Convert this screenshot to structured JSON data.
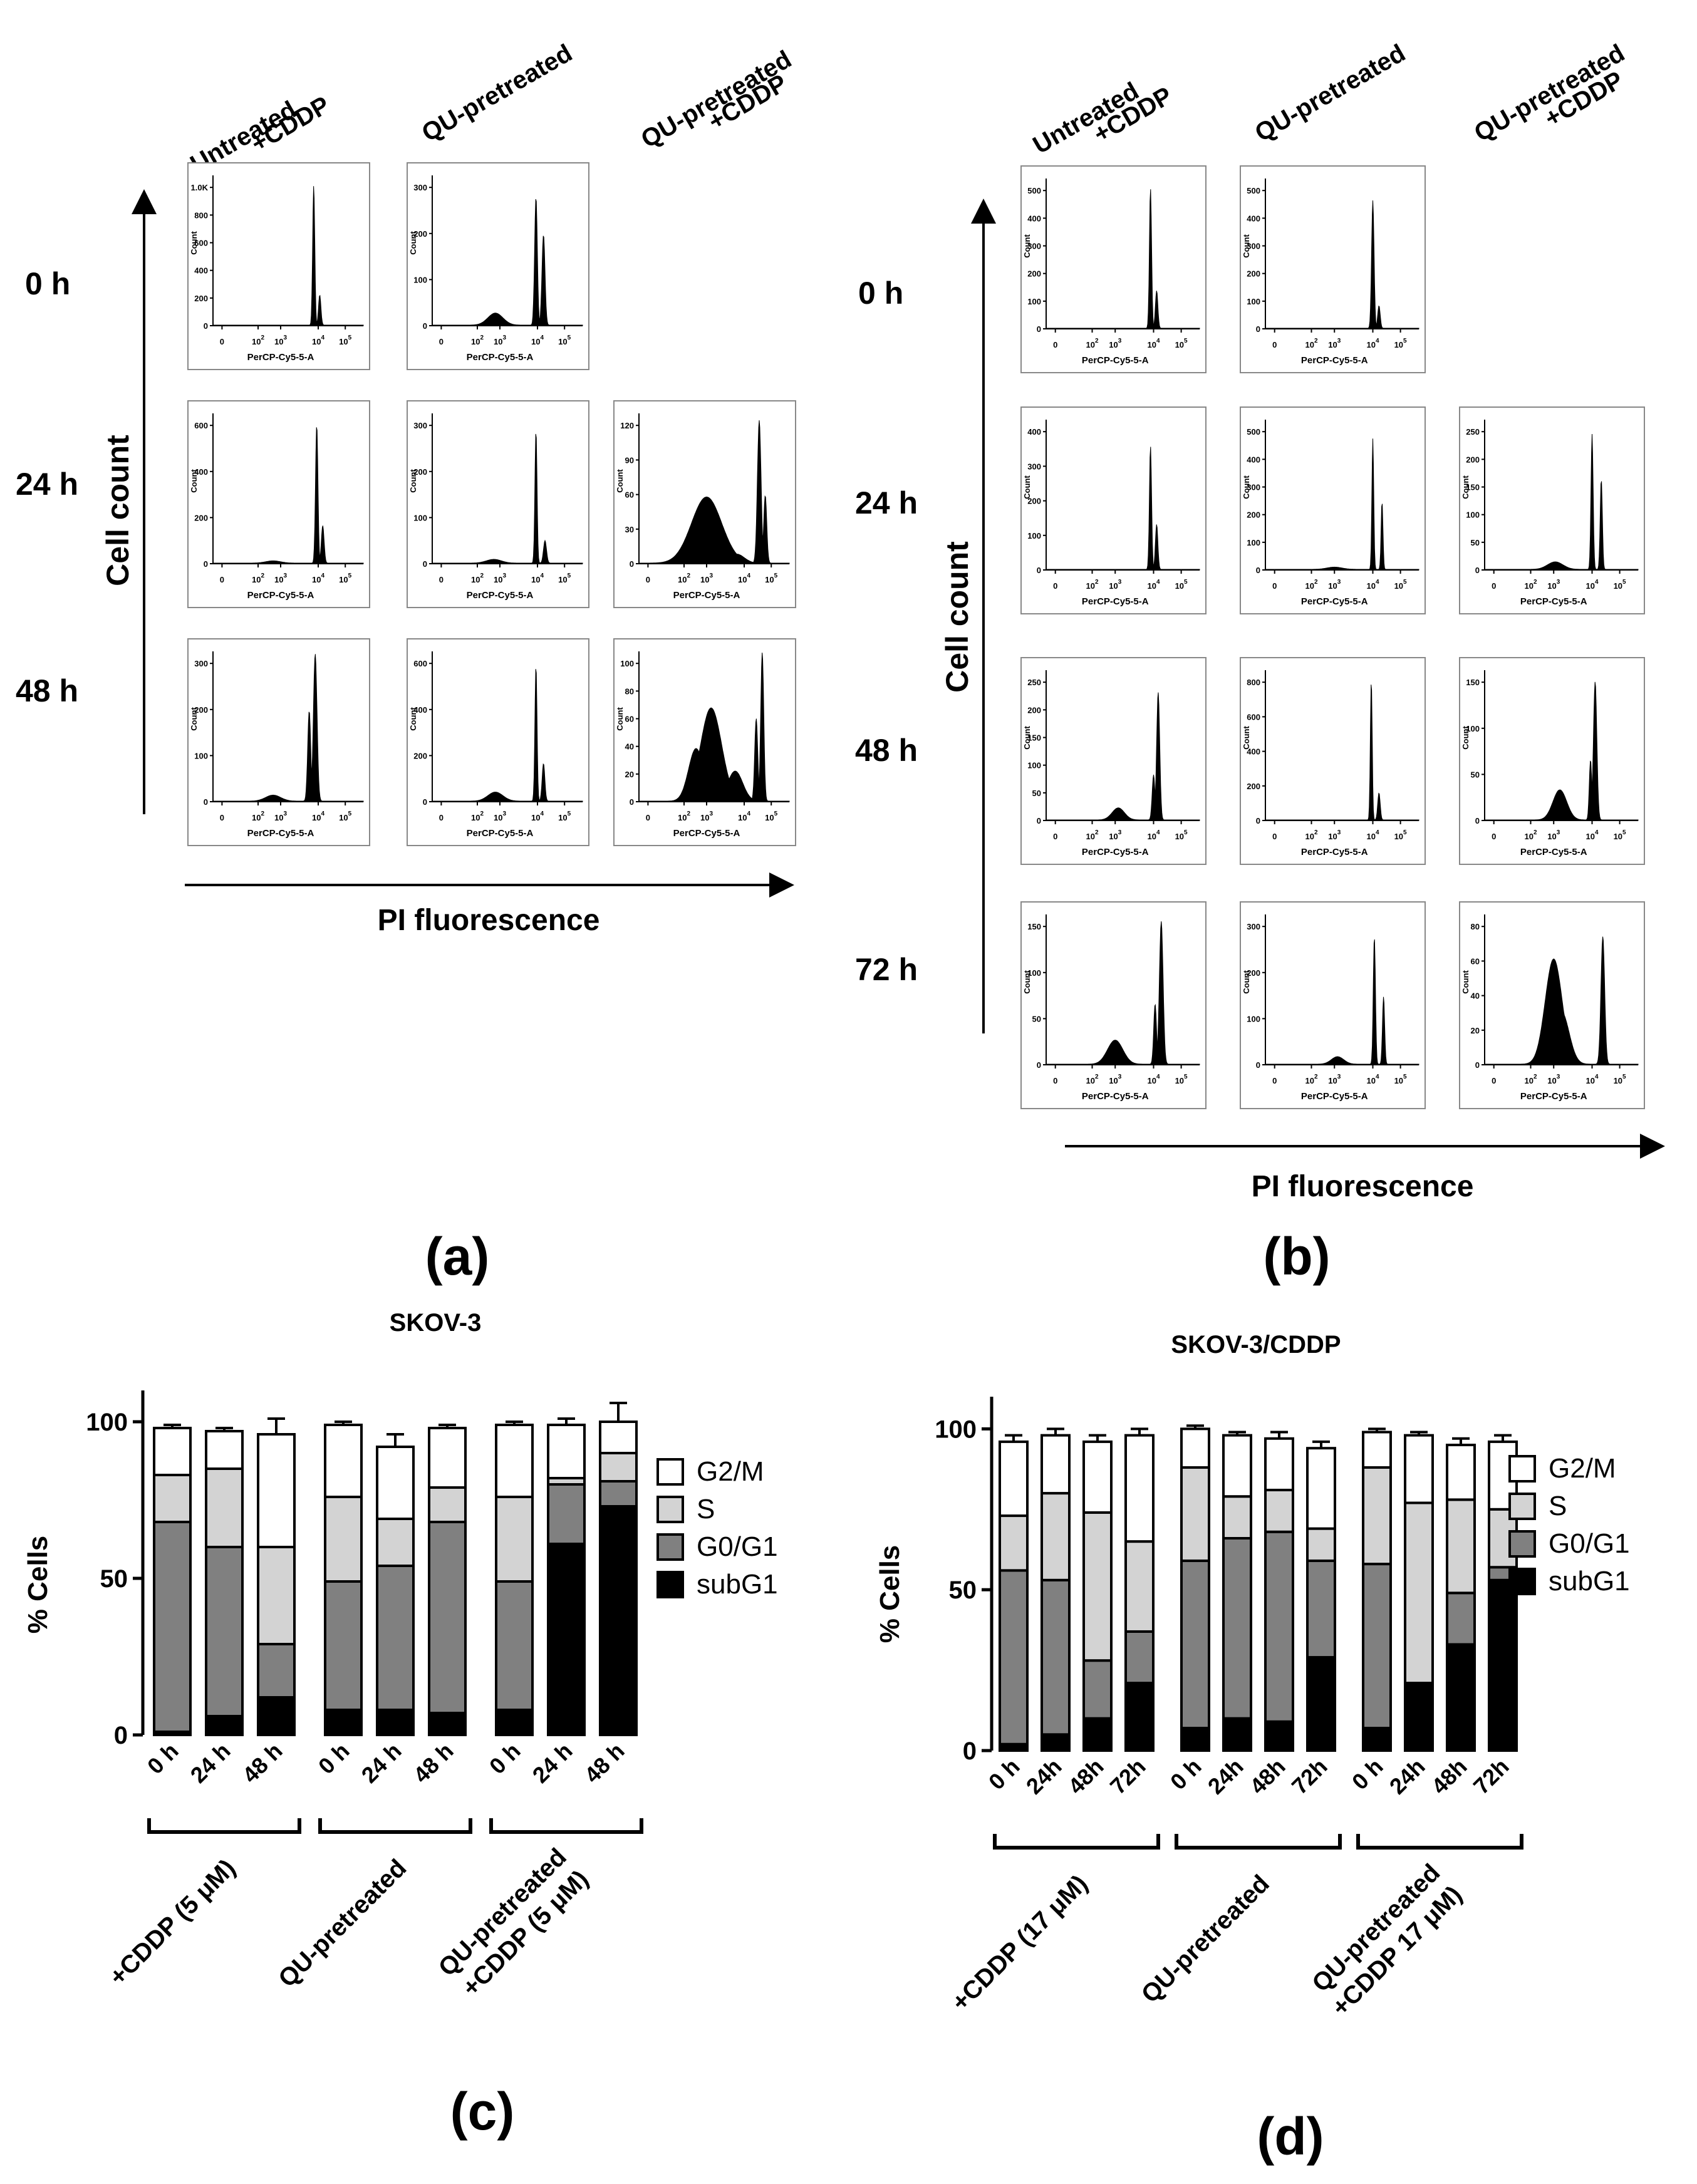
{
  "common": {
    "count_label": "Count",
    "axis_label": "PerCP-Cy5-5-A",
    "x_ticks": [
      "0",
      "10",
      "10",
      "10",
      "10"
    ],
    "x_tick_exponents": [
      "",
      "2",
      "3",
      "4",
      "5"
    ]
  },
  "panel_a": {
    "letter": "(a)",
    "cond_labels": [
      [
        "Untreated",
        "+CDDP"
      ],
      [
        "QU-pretreated"
      ],
      [
        "QU-pretreated",
        "+CDDP"
      ]
    ],
    "time_labels": [
      "0 h",
      "24 h",
      "48 h"
    ],
    "y_axis_label": "Cell count",
    "x_axis_label": "PI fluorescence",
    "histograms": [
      {
        "row": 0,
        "col": 0,
        "yticks": [
          "0",
          "200",
          "400",
          "600",
          "800",
          "1.0K"
        ],
        "peaks": [
          {
            "c": 0.67,
            "h": 0.93,
            "w": 0.007
          },
          {
            "c": 0.71,
            "h": 0.2,
            "w": 0.008
          }
        ],
        "humps": []
      },
      {
        "row": 0,
        "col": 1,
        "yticks": [
          "0",
          "100",
          "200",
          "300"
        ],
        "peaks": [
          {
            "c": 0.69,
            "h": 0.85,
            "w": 0.009
          },
          {
            "c": 0.74,
            "h": 0.6,
            "w": 0.01
          }
        ],
        "humps": [
          {
            "c": 0.42,
            "h": 0.08,
            "w": 0.05
          }
        ]
      },
      {
        "row": 1,
        "col": 0,
        "yticks": [
          "0",
          "200",
          "400",
          "600"
        ],
        "peaks": [
          {
            "c": 0.69,
            "h": 0.92,
            "w": 0.008
          },
          {
            "c": 0.73,
            "h": 0.25,
            "w": 0.009
          }
        ],
        "humps": [
          {
            "c": 0.4,
            "h": 0.015,
            "w": 0.05
          }
        ]
      },
      {
        "row": 1,
        "col": 1,
        "yticks": [
          "0",
          "100",
          "200",
          "300"
        ],
        "peaks": [
          {
            "c": 0.69,
            "h": 0.88,
            "w": 0.007
          },
          {
            "c": 0.75,
            "h": 0.15,
            "w": 0.01
          }
        ],
        "humps": [
          {
            "c": 0.41,
            "h": 0.025,
            "w": 0.05
          }
        ]
      },
      {
        "row": 1,
        "col": 2,
        "yticks": [
          "0",
          "30",
          "60",
          "90",
          "120"
        ],
        "peaks": [
          {
            "c": 0.8,
            "h": 0.95,
            "w": 0.012
          },
          {
            "c": 0.84,
            "h": 0.45,
            "w": 0.01
          }
        ],
        "humps": [
          {
            "c": 0.45,
            "h": 0.44,
            "w": 0.1
          },
          {
            "c": 0.65,
            "h": 0.06,
            "w": 0.05
          }
        ]
      },
      {
        "row": 2,
        "col": 0,
        "yticks": [
          "0",
          "100",
          "200",
          "300"
        ],
        "peaks": [
          {
            "c": 0.68,
            "h": 0.98,
            "w": 0.012
          },
          {
            "c": 0.64,
            "h": 0.6,
            "w": 0.01
          }
        ],
        "humps": [
          {
            "c": 0.4,
            "h": 0.04,
            "w": 0.05
          }
        ]
      },
      {
        "row": 2,
        "col": 1,
        "yticks": [
          "0",
          "200",
          "400",
          "600"
        ],
        "peaks": [
          {
            "c": 0.69,
            "h": 0.9,
            "w": 0.007
          },
          {
            "c": 0.74,
            "h": 0.25,
            "w": 0.009
          }
        ],
        "humps": [
          {
            "c": 0.42,
            "h": 0.06,
            "w": 0.05
          }
        ]
      },
      {
        "row": 2,
        "col": 2,
        "yticks": [
          "0",
          "20",
          "40",
          "60",
          "80",
          "100"
        ],
        "peaks": [
          {
            "c": 0.82,
            "h": 0.99,
            "w": 0.01
          },
          {
            "c": 0.78,
            "h": 0.55,
            "w": 0.01
          }
        ],
        "humps": [
          {
            "c": 0.48,
            "h": 0.62,
            "w": 0.07
          },
          {
            "c": 0.38,
            "h": 0.35,
            "w": 0.05
          },
          {
            "c": 0.64,
            "h": 0.2,
            "w": 0.05
          }
        ]
      }
    ]
  },
  "panel_b": {
    "letter": "(b)",
    "cond_labels": [
      [
        "Untreated",
        "+CDDP"
      ],
      [
        "QU-pretreated"
      ],
      [
        "QU-pretreated",
        "+CDDP"
      ]
    ],
    "time_labels": [
      "0 h",
      "24 h",
      "48 h",
      "72 h"
    ],
    "y_axis_label": "Cell count",
    "x_axis_label": "PI fluorescence",
    "histograms": [
      {
        "row": 0,
        "col": 0,
        "yticks": [
          "0",
          "100",
          "200",
          "300",
          "400",
          "500"
        ],
        "peaks": [
          {
            "c": 0.68,
            "h": 0.93,
            "w": 0.007
          },
          {
            "c": 0.72,
            "h": 0.25,
            "w": 0.008
          }
        ],
        "humps": []
      },
      {
        "row": 0,
        "col": 1,
        "yticks": [
          "0",
          "100",
          "200",
          "300",
          "400",
          "500"
        ],
        "peaks": [
          {
            "c": 0.7,
            "h": 0.85,
            "w": 0.008
          },
          {
            "c": 0.74,
            "h": 0.15,
            "w": 0.008
          }
        ],
        "humps": []
      },
      {
        "row": 1,
        "col": 0,
        "yticks": [
          "0",
          "100",
          "200",
          "300",
          "400"
        ],
        "peaks": [
          {
            "c": 0.68,
            "h": 0.82,
            "w": 0.007
          },
          {
            "c": 0.72,
            "h": 0.3,
            "w": 0.008
          }
        ],
        "humps": []
      },
      {
        "row": 1,
        "col": 1,
        "yticks": [
          "0",
          "100",
          "200",
          "300",
          "400",
          "500"
        ],
        "peaks": [
          {
            "c": 0.7,
            "h": 0.87,
            "w": 0.006
          },
          {
            "c": 0.76,
            "h": 0.45,
            "w": 0.006
          }
        ],
        "humps": [
          {
            "c": 0.45,
            "h": 0.015,
            "w": 0.05
          }
        ]
      },
      {
        "row": 1,
        "col": 2,
        "yticks": [
          "0",
          "50",
          "100",
          "150",
          "200",
          "250"
        ],
        "peaks": [
          {
            "c": 0.7,
            "h": 0.9,
            "w": 0.007
          },
          {
            "c": 0.76,
            "h": 0.6,
            "w": 0.007
          }
        ],
        "humps": [
          {
            "c": 0.46,
            "h": 0.05,
            "w": 0.05
          }
        ]
      },
      {
        "row": 2,
        "col": 0,
        "yticks": [
          "0",
          "50",
          "100",
          "150",
          "200",
          "250"
        ],
        "peaks": [
          {
            "c": 0.73,
            "h": 0.85,
            "w": 0.01
          },
          {
            "c": 0.7,
            "h": 0.3,
            "w": 0.009
          }
        ],
        "humps": [
          {
            "c": 0.47,
            "h": 0.08,
            "w": 0.04
          }
        ]
      },
      {
        "row": 2,
        "col": 1,
        "yticks": [
          "0",
          "200",
          "400",
          "600",
          "800"
        ],
        "peaks": [
          {
            "c": 0.69,
            "h": 0.93,
            "w": 0.006
          },
          {
            "c": 0.74,
            "h": 0.18,
            "w": 0.008
          }
        ],
        "humps": []
      },
      {
        "row": 2,
        "col": 2,
        "yticks": [
          "0",
          "50",
          "100",
          "150"
        ],
        "peaks": [
          {
            "c": 0.72,
            "h": 0.92,
            "w": 0.011
          },
          {
            "c": 0.69,
            "h": 0.4,
            "w": 0.008
          }
        ],
        "humps": [
          {
            "c": 0.49,
            "h": 0.2,
            "w": 0.045
          }
        ]
      },
      {
        "row": 3,
        "col": 0,
        "yticks": [
          "0",
          "50",
          "100",
          "150"
        ],
        "peaks": [
          {
            "c": 0.75,
            "h": 0.95,
            "w": 0.012
          },
          {
            "c": 0.71,
            "h": 0.4,
            "w": 0.009
          }
        ],
        "humps": [
          {
            "c": 0.45,
            "h": 0.16,
            "w": 0.05
          }
        ]
      },
      {
        "row": 3,
        "col": 1,
        "yticks": [
          "0",
          "100",
          "200",
          "300"
        ],
        "peaks": [
          {
            "c": 0.71,
            "h": 0.85,
            "w": 0.007
          },
          {
            "c": 0.77,
            "h": 0.45,
            "w": 0.007
          }
        ],
        "humps": [
          {
            "c": 0.47,
            "h": 0.05,
            "w": 0.04
          }
        ]
      },
      {
        "row": 3,
        "col": 2,
        "yticks": [
          "0",
          "20",
          "40",
          "60",
          "80"
        ],
        "peaks": [
          {
            "c": 0.77,
            "h": 0.85,
            "w": 0.012
          }
        ],
        "humps": [
          {
            "c": 0.45,
            "h": 0.7,
            "w": 0.055
          },
          {
            "c": 0.5,
            "h": 0.35,
            "w": 0.05
          }
        ]
      }
    ]
  },
  "chart_data": [
    {
      "type": "bar",
      "stacked": true,
      "panel": "(c)",
      "title": "SKOV-3",
      "ylabel": "% Cells",
      "ylim": [
        0,
        110
      ],
      "yticks": [
        "0",
        "50",
        "100"
      ],
      "categories": [
        "0 h",
        "24 h",
        "48 h",
        "0 h",
        "24 h",
        "48 h",
        "0 h",
        "24 h",
        "48 h"
      ],
      "groups": [
        {
          "label_lines": [
            "+CDDP (5 μM)"
          ],
          "start": 0,
          "end": 2
        },
        {
          "label_lines": [
            "QU-pretreated"
          ],
          "start": 3,
          "end": 5
        },
        {
          "label_lines": [
            "QU-pretreated",
            "+CDDP (5 μM)"
          ],
          "start": 6,
          "end": 8
        }
      ],
      "legend": [
        "G2/M",
        "S",
        "G0/G1",
        "subG1"
      ],
      "series": [
        {
          "name": "subG1",
          "color": "#000000",
          "values": [
            1,
            6,
            12,
            8,
            8,
            7,
            8,
            61,
            73
          ]
        },
        {
          "name": "G0/G1",
          "color": "#808080",
          "values": [
            67,
            54,
            17,
            41,
            46,
            61,
            41,
            19,
            8
          ]
        },
        {
          "name": "S",
          "color": "#d3d3d3",
          "values": [
            15,
            25,
            31,
            27,
            15,
            11,
            27,
            2,
            9
          ]
        },
        {
          "name": "G2/M",
          "color": "#ffffff",
          "values": [
            15,
            12,
            36,
            23,
            23,
            19,
            23,
            17,
            10
          ]
        }
      ],
      "errors": [
        [
          0.5,
          1,
          9,
          1,
          1,
          1,
          1,
          1,
          2
        ],
        [
          1,
          4,
          1,
          1,
          4,
          1,
          1,
          1,
          2
        ],
        [
          1,
          4,
          6,
          1,
          1,
          3,
          1,
          1,
          3
        ],
        [
          1,
          1,
          5,
          1,
          4,
          1,
          1,
          2,
          6
        ]
      ]
    },
    {
      "type": "bar",
      "stacked": true,
      "panel": "(d)",
      "title": "SKOV-3/CDDP",
      "ylabel": "% Cells",
      "ylim": [
        0,
        110
      ],
      "yticks": [
        "0",
        "50",
        "100"
      ],
      "categories": [
        "0 h",
        "24h",
        "48h",
        "72h",
        "0 h",
        "24h",
        "48h",
        "72h",
        "0 h",
        "24h",
        "48h",
        "72h"
      ],
      "groups": [
        {
          "label_lines": [
            "+CDDP (17 μM)"
          ],
          "start": 0,
          "end": 3
        },
        {
          "label_lines": [
            "QU-pretreated"
          ],
          "start": 4,
          "end": 7
        },
        {
          "label_lines": [
            "QU-pretreated",
            "+CDDP 17 μM)"
          ],
          "start": 8,
          "end": 11
        }
      ],
      "legend": [
        "G2/M",
        "S",
        "G0/G1",
        "subG1"
      ],
      "series": [
        {
          "name": "subG1",
          "color": "#000000",
          "values": [
            2,
            5,
            10,
            21,
            7,
            10,
            9,
            29,
            7,
            21,
            33,
            53
          ]
        },
        {
          "name": "G0/G1",
          "color": "#808080",
          "values": [
            54,
            48,
            18,
            16,
            52,
            56,
            59,
            30,
            51,
            0,
            16,
            4
          ]
        },
        {
          "name": "S",
          "color": "#d3d3d3",
          "values": [
            17,
            27,
            46,
            28,
            29,
            13,
            13,
            10,
            30,
            56,
            29,
            18
          ]
        },
        {
          "name": "G2/M",
          "color": "#ffffff",
          "values": [
            23,
            18,
            22,
            33,
            12,
            19,
            16,
            25,
            11,
            21,
            17,
            21
          ]
        }
      ],
      "errors": [
        [
          0.5,
          1,
          2,
          1,
          1,
          1,
          1,
          1,
          1,
          1,
          6,
          1
        ],
        [
          1,
          1,
          2,
          2,
          1,
          1,
          1,
          1,
          1,
          1,
          13,
          2
        ],
        [
          1,
          4,
          1,
          5,
          1,
          1,
          2,
          2,
          1,
          12,
          5,
          2
        ],
        [
          2,
          2,
          2,
          2,
          1,
          1,
          2,
          2,
          1,
          1,
          2,
          2
        ]
      ]
    }
  ]
}
